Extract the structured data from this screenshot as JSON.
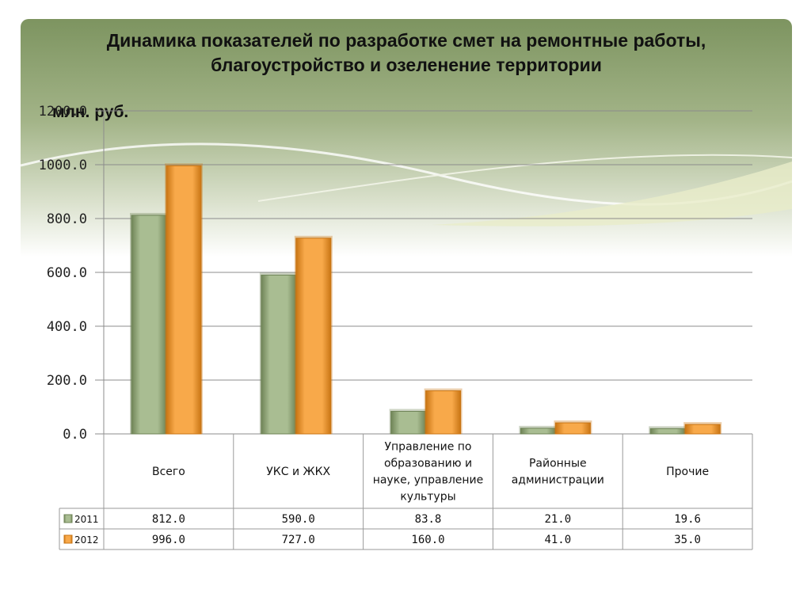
{
  "title_line1": "Динамика показателей по разработке смет на ремонтные работы,",
  "title_line2": "благоустройство и озеленение территории",
  "unit_label": "млн. руб.",
  "colors": {
    "series_2011": "#a9bd92",
    "series_2011_dark": "#6f8457",
    "series_2012": "#f8a94a",
    "series_2012_dark": "#c97514",
    "grid": "#8c8c8c"
  },
  "chart_data": {
    "type": "bar",
    "categories": [
      [
        "Всего"
      ],
      [
        "УКС и ЖКХ"
      ],
      [
        "Управление по",
        "образованию и",
        "науке, управление",
        "культуры"
      ],
      [
        "Районные",
        "администрации"
      ],
      [
        "Прочие"
      ]
    ],
    "series": [
      {
        "name": "2011",
        "values": [
          812.0,
          590.0,
          83.8,
          21.0,
          19.6
        ],
        "labels": [
          "812.0",
          "590.0",
          "83.8",
          "21.0",
          "19.6"
        ]
      },
      {
        "name": "2012",
        "values": [
          996.0,
          727.0,
          160.0,
          41.0,
          35.0
        ],
        "labels": [
          "996.0",
          "727.0",
          "160.0",
          "41.0",
          "35.0"
        ]
      }
    ],
    "ylim": [
      0,
      1200
    ],
    "yticks": [
      "0.0",
      "200.0",
      "400.0",
      "600.0",
      "800.0",
      "1000.0",
      "1200.0"
    ],
    "legend": "data-table",
    "grid": true
  }
}
